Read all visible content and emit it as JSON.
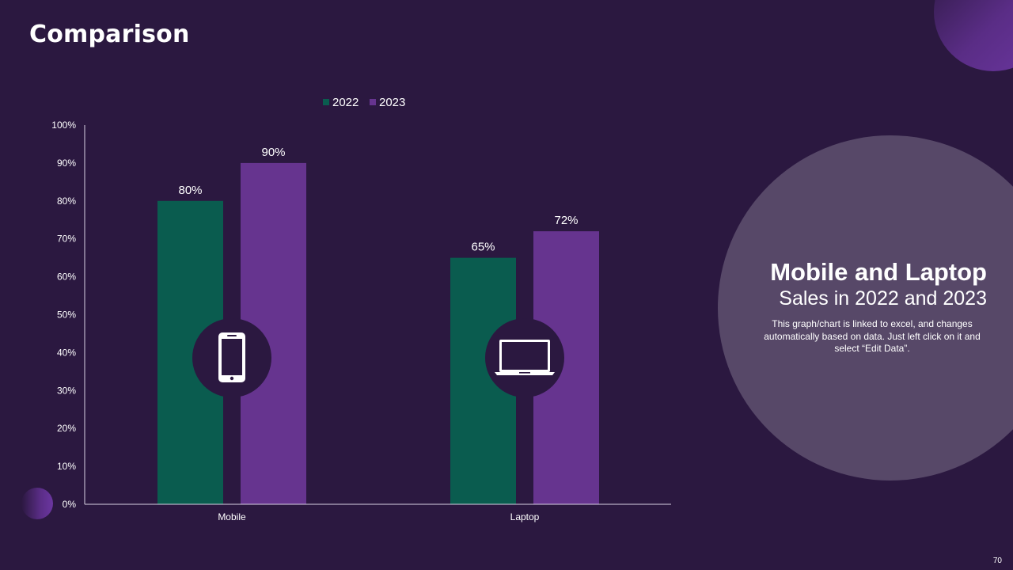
{
  "page": {
    "title": "Comparison",
    "page_number": "70"
  },
  "panel": {
    "heading": "Mobile and Laptop",
    "subheading": "Sales in 2022 and 2023",
    "body": "This graph/chart is linked to excel, and changes automatically based on data. Just left click on it and select “Edit Data”."
  },
  "colors": {
    "background": "#2b1840",
    "series_2022": "#0a5c4f",
    "series_2023": "#66348f",
    "circle": "#574868"
  },
  "chart_data": {
    "type": "bar",
    "title": "",
    "xlabel": "",
    "ylabel": "",
    "categories": [
      "Mobile",
      "Laptop"
    ],
    "category_icons": [
      "mobile-phone-icon",
      "laptop-icon"
    ],
    "series": [
      {
        "name": "2022",
        "values": [
          80,
          65
        ],
        "labels": [
          "80%",
          "65%"
        ],
        "color": "#0a5c4f"
      },
      {
        "name": "2023",
        "values": [
          90,
          72
        ],
        "labels": [
          "90%",
          "72%"
        ],
        "color": "#66348f"
      }
    ],
    "ylim": [
      0,
      100
    ],
    "yticks": [
      "0%",
      "10%",
      "20%",
      "30%",
      "40%",
      "50%",
      "60%",
      "70%",
      "80%",
      "90%",
      "100%"
    ],
    "legend": "top-center",
    "grid": false
  }
}
